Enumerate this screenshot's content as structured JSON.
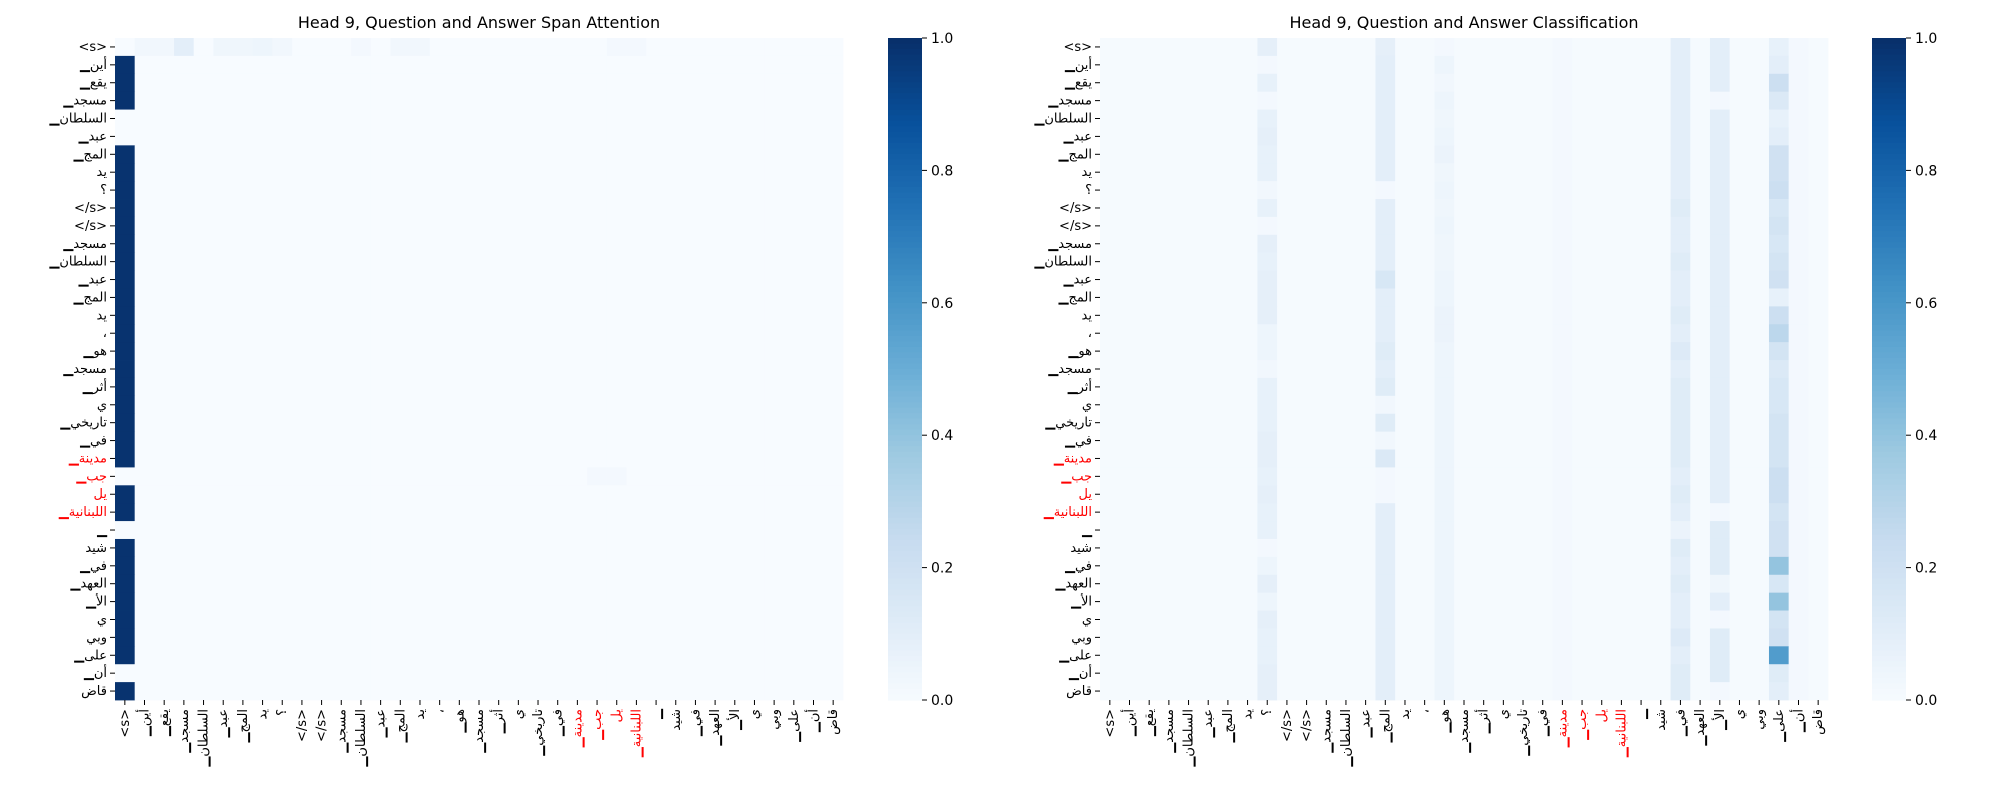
{
  "tokens": [
    "<s>",
    "▁أين",
    "▁يقع",
    "▁مسجد",
    "▁السلطان",
    "▁عبد",
    "▁المج",
    "يد",
    "؟",
    "</s>",
    "</s>",
    "▁مسجد",
    "▁السلطان",
    "▁عبد",
    "▁المج",
    "يد",
    "،",
    "▁هو",
    "▁مسجد",
    "▁أثر",
    "ي",
    "▁تاريخي",
    "▁في",
    "▁مدينة",
    "▁جب",
    "يل",
    "▁اللبنانية",
    "▁",
    "شيد",
    "▁في",
    "▁العهد",
    "▁الأ",
    "ي",
    "وبي",
    "▁على",
    "▁أن",
    "قاض"
  ],
  "highlight_tokens": [
    23,
    24,
    25,
    26
  ],
  "colors": {
    "highlight": "#ff0000",
    "text": "#000000",
    "cmap_low": "#f7fbff",
    "cmap_high": "#08306b"
  },
  "chart_data": [
    {
      "type": "heatmap",
      "title": "Head 9, Question and Answer Span Attention",
      "xlabel": "",
      "ylabel": "",
      "value_range": [
        0,
        1
      ],
      "colorbar_ticks": [
        "0.0",
        "0.2",
        "0.4",
        "0.6",
        "0.8",
        "1.0"
      ],
      "col_values": [
        [
          0.0,
          0.99,
          0.99,
          0.99,
          0.0,
          0.0,
          0.99,
          0.99,
          0.99,
          0.99,
          0.99,
          0.99,
          0.99,
          0.99,
          0.99,
          0.99,
          0.99,
          0.99,
          0.99,
          0.99,
          0.99,
          0.99,
          0.99,
          0.99,
          0.0,
          0.99,
          0.99,
          0.0,
          0.99,
          0.99,
          0.99,
          0.99,
          0.99,
          0.99,
          0.99,
          0.0,
          0.99
        ]
      ],
      "extras": [
        {
          "row": 0,
          "col": 1,
          "v": 0.03
        },
        {
          "row": 0,
          "col": 2,
          "v": 0.03
        },
        {
          "row": 0,
          "col": 3,
          "v": 0.1
        },
        {
          "row": 0,
          "col": 5,
          "v": 0.04
        },
        {
          "row": 0,
          "col": 6,
          "v": 0.04
        },
        {
          "row": 0,
          "col": 7,
          "v": 0.05
        },
        {
          "row": 0,
          "col": 8,
          "v": 0.03
        },
        {
          "row": 0,
          "col": 12,
          "v": 0.02
        },
        {
          "row": 0,
          "col": 14,
          "v": 0.03
        },
        {
          "row": 0,
          "col": 15,
          "v": 0.03
        },
        {
          "row": 0,
          "col": 25,
          "v": 0.02
        },
        {
          "row": 0,
          "col": 26,
          "v": 0.02
        },
        {
          "row": 24,
          "col": 24,
          "v": 0.02
        },
        {
          "row": 24,
          "col": 25,
          "v": 0.02
        }
      ]
    },
    {
      "type": "heatmap",
      "title": "Head 9, Question and Answer Classification",
      "xlabel": "",
      "ylabel": "",
      "value_range": [
        0,
        1
      ],
      "colorbar_ticks": [
        "0.0",
        "0.2",
        "0.4",
        "0.6",
        "0.8",
        "1.0"
      ],
      "col_values": [
        [
          0.01,
          0.01,
          0.01,
          0.01,
          0.01,
          0.01,
          0.01,
          0.01,
          0.01,
          0.01,
          0.01,
          0.01,
          0.01,
          0.01,
          0.01,
          0.01,
          0.01,
          0.01,
          0.01,
          0.01,
          0.01,
          0.01,
          0.01,
          0.02,
          0.01,
          0.01,
          0.01,
          0.01,
          0.01,
          0.01,
          0.01,
          0.01,
          0.01,
          0.01,
          0.01,
          0.02,
          0.01
        ]
      ],
      "columns": [
        {
          "col": 8,
          "values": [
            0.09,
            0.02,
            0.08,
            0.02,
            0.08,
            0.09,
            0.08,
            0.08,
            0.03,
            0.08,
            0.02,
            0.09,
            0.08,
            0.09,
            0.09,
            0.09,
            0.05,
            0.05,
            0.03,
            0.08,
            0.08,
            0.08,
            0.09,
            0.09,
            0.08,
            0.09,
            0.08,
            0.08,
            0.02,
            0.05,
            0.09,
            0.05,
            0.09,
            0.08,
            0.08,
            0.09,
            0.09
          ]
        },
        {
          "col": 14,
          "values": [
            0.09,
            0.1,
            0.1,
            0.1,
            0.1,
            0.1,
            0.1,
            0.1,
            0.02,
            0.1,
            0.1,
            0.1,
            0.1,
            0.16,
            0.1,
            0.1,
            0.1,
            0.12,
            0.1,
            0.12,
            0.03,
            0.12,
            0.03,
            0.14,
            0.02,
            0.02,
            0.1,
            0.1,
            0.1,
            0.1,
            0.1,
            0.1,
            0.1,
            0.1,
            0.1,
            0.1,
            0.1
          ]
        },
        {
          "col": 17,
          "values": [
            0.02,
            0.05,
            0.03,
            0.05,
            0.04,
            0.05,
            0.06,
            0.04,
            0.05,
            0.04,
            0.05,
            0.04,
            0.04,
            0.05,
            0.05,
            0.06,
            0.06,
            0.05,
            0.05,
            0.05,
            0.05,
            0.05,
            0.05,
            0.05,
            0.05,
            0.05,
            0.05,
            0.05,
            0.05,
            0.05,
            0.05,
            0.05,
            0.05,
            0.05,
            0.05,
            0.05,
            0.05
          ]
        },
        {
          "col": 29,
          "values": [
            0.1,
            0.1,
            0.1,
            0.1,
            0.1,
            0.1,
            0.1,
            0.1,
            0.1,
            0.12,
            0.1,
            0.1,
            0.12,
            0.1,
            0.1,
            0.12,
            0.1,
            0.13,
            0.1,
            0.12,
            0.12,
            0.12,
            0.12,
            0.12,
            0.1,
            0.12,
            0.1,
            0.06,
            0.12,
            0.1,
            0.12,
            0.1,
            0.1,
            0.13,
            0.1,
            0.12,
            0.12
          ]
        },
        {
          "col": 31,
          "values": [
            0.1,
            0.1,
            0.1,
            0.02,
            0.1,
            0.1,
            0.1,
            0.1,
            0.1,
            0.1,
            0.1,
            0.1,
            0.1,
            0.1,
            0.1,
            0.1,
            0.1,
            0.1,
            0.1,
            0.1,
            0.1,
            0.1,
            0.1,
            0.1,
            0.1,
            0.1,
            0.02,
            0.12,
            0.12,
            0.12,
            0.04,
            0.1,
            0.02,
            0.12,
            0.12,
            0.12,
            0.02
          ]
        },
        {
          "col": 34,
          "values": [
            0.08,
            0.1,
            0.22,
            0.14,
            0.08,
            0.1,
            0.2,
            0.2,
            0.22,
            0.16,
            0.18,
            0.16,
            0.18,
            0.2,
            0.08,
            0.22,
            0.28,
            0.18,
            0.14,
            0.16,
            0.16,
            0.18,
            0.18,
            0.18,
            0.22,
            0.22,
            0.18,
            0.2,
            0.2,
            0.4,
            0.16,
            0.4,
            0.18,
            0.2,
            0.58,
            0.12,
            0.1
          ]
        }
      ]
    }
  ]
}
